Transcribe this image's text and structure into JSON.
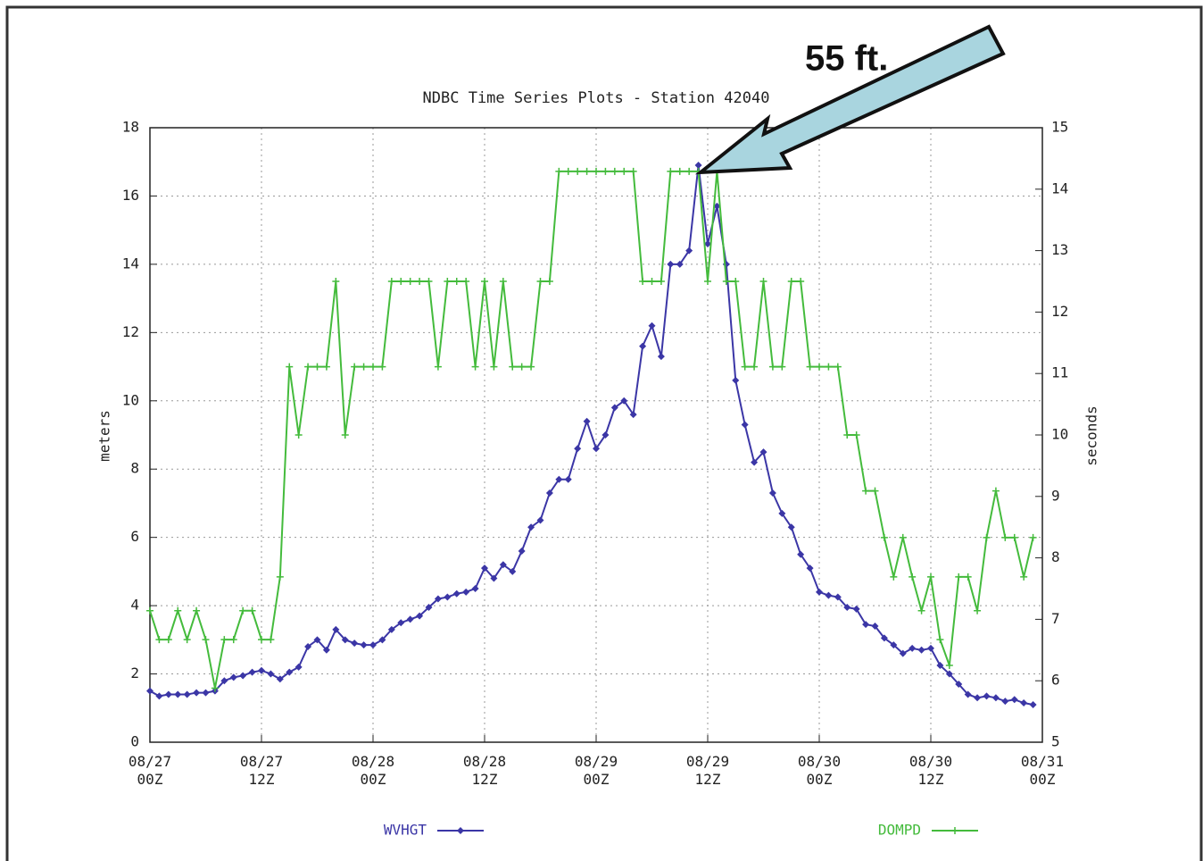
{
  "chart_data": {
    "type": "line",
    "title": "NDBC Time Series Plots - Station 42040",
    "annotation": "55 ft.",
    "ylabel": "meters",
    "y2label": "seconds",
    "x": [
      0,
      1,
      2,
      3,
      4,
      5,
      6,
      7,
      8,
      9,
      10,
      11,
      12,
      13,
      14,
      15,
      16,
      17,
      18,
      19,
      20,
      21,
      22,
      23,
      24,
      25,
      26,
      27,
      28,
      29,
      30,
      31,
      32,
      33,
      34,
      35,
      36,
      37,
      38,
      39,
      40,
      41,
      42,
      43,
      44,
      45,
      46,
      47,
      48,
      49,
      50,
      51,
      52,
      53,
      54,
      55,
      56,
      57,
      58,
      59,
      60,
      61,
      62,
      63,
      64,
      65,
      66,
      67,
      68,
      69,
      70,
      71,
      72,
      73,
      74,
      75,
      76,
      77,
      78,
      79,
      80,
      81,
      82,
      83,
      84,
      85,
      86,
      87,
      88,
      89,
      90,
      91,
      92,
      93,
      94,
      95
    ],
    "xlim": [
      0,
      96
    ],
    "xticks": [
      {
        "value": 0,
        "label": "08/27\n00Z"
      },
      {
        "value": 12,
        "label": "08/27\n12Z"
      },
      {
        "value": 24,
        "label": "08/28\n00Z"
      },
      {
        "value": 36,
        "label": "08/28\n12Z"
      },
      {
        "value": 48,
        "label": "08/29\n00Z"
      },
      {
        "value": 60,
        "label": "08/29\n12Z"
      },
      {
        "value": 72,
        "label": "08/30\n00Z"
      },
      {
        "value": 84,
        "label": "08/30\n12Z"
      },
      {
        "value": 96,
        "label": "08/31\n00Z"
      }
    ],
    "ylim": [
      0,
      18
    ],
    "yticks": [
      0,
      2,
      4,
      6,
      8,
      10,
      12,
      14,
      16,
      18
    ],
    "y2lim": [
      5,
      15
    ],
    "y2ticks": [
      5,
      6,
      7,
      8,
      9,
      10,
      11,
      12,
      13,
      14,
      15
    ],
    "grid": true,
    "series": [
      {
        "name": "WVHGT",
        "color": "#3b36a6",
        "axis": "y",
        "marker": "diamond",
        "values": [
          1.5,
          1.35,
          1.4,
          1.4,
          1.4,
          1.45,
          1.45,
          1.5,
          1.8,
          1.9,
          1.95,
          2.05,
          2.1,
          2.0,
          1.85,
          2.05,
          2.2,
          2.8,
          3.0,
          2.7,
          3.3,
          3.0,
          2.9,
          2.85,
          2.85,
          3.0,
          3.3,
          3.5,
          3.6,
          3.7,
          3.95,
          4.2,
          4.25,
          4.35,
          4.4,
          4.5,
          5.1,
          4.8,
          5.2,
          5.0,
          5.6,
          6.3,
          6.5,
          7.3,
          7.7,
          7.7,
          8.6,
          9.4,
          8.6,
          9.0,
          9.8,
          10.0,
          9.6,
          11.6,
          12.2,
          11.3,
          14.0,
          14.0,
          14.4,
          16.9,
          14.6,
          15.7,
          14.0,
          10.6,
          9.3,
          8.2,
          8.5,
          7.3,
          6.7,
          6.3,
          5.5,
          5.1,
          4.4,
          4.3,
          4.25,
          3.95,
          3.9,
          3.45,
          3.4,
          3.05,
          2.85,
          2.6,
          2.75,
          2.7,
          2.75,
          2.25,
          2.0,
          1.7,
          1.4,
          1.3,
          1.35,
          1.3,
          1.2,
          1.25,
          1.15,
          1.1
        ]
      },
      {
        "name": "DOMPD",
        "color": "#44bb3c",
        "axis": "y2",
        "marker": "plus",
        "values": [
          7.14,
          6.67,
          6.67,
          7.14,
          6.67,
          7.14,
          6.67,
          5.88,
          6.67,
          6.67,
          7.14,
          7.14,
          6.67,
          6.67,
          7.69,
          11.11,
          10,
          11.11,
          11.11,
          11.11,
          12.5,
          10,
          11.11,
          11.11,
          11.11,
          11.11,
          12.5,
          12.5,
          12.5,
          12.5,
          12.5,
          11.11,
          12.5,
          12.5,
          12.5,
          11.11,
          12.5,
          11.11,
          12.5,
          11.11,
          11.11,
          11.11,
          12.5,
          12.5,
          14.29,
          14.29,
          14.29,
          14.29,
          14.29,
          14.29,
          14.29,
          14.29,
          14.29,
          12.5,
          12.5,
          12.5,
          14.29,
          14.29,
          14.29,
          14.29,
          12.5,
          14.29,
          12.5,
          12.5,
          11.11,
          11.11,
          12.5,
          11.11,
          11.11,
          12.5,
          12.5,
          11.11,
          11.11,
          11.11,
          11.11,
          10,
          10,
          9.09,
          9.09,
          8.33,
          7.69,
          8.33,
          7.69,
          7.14,
          7.69,
          6.67,
          6.25,
          7.69,
          7.69,
          7.14,
          8.33,
          9.09,
          8.33,
          8.33,
          7.69,
          8.33
        ]
      }
    ]
  }
}
